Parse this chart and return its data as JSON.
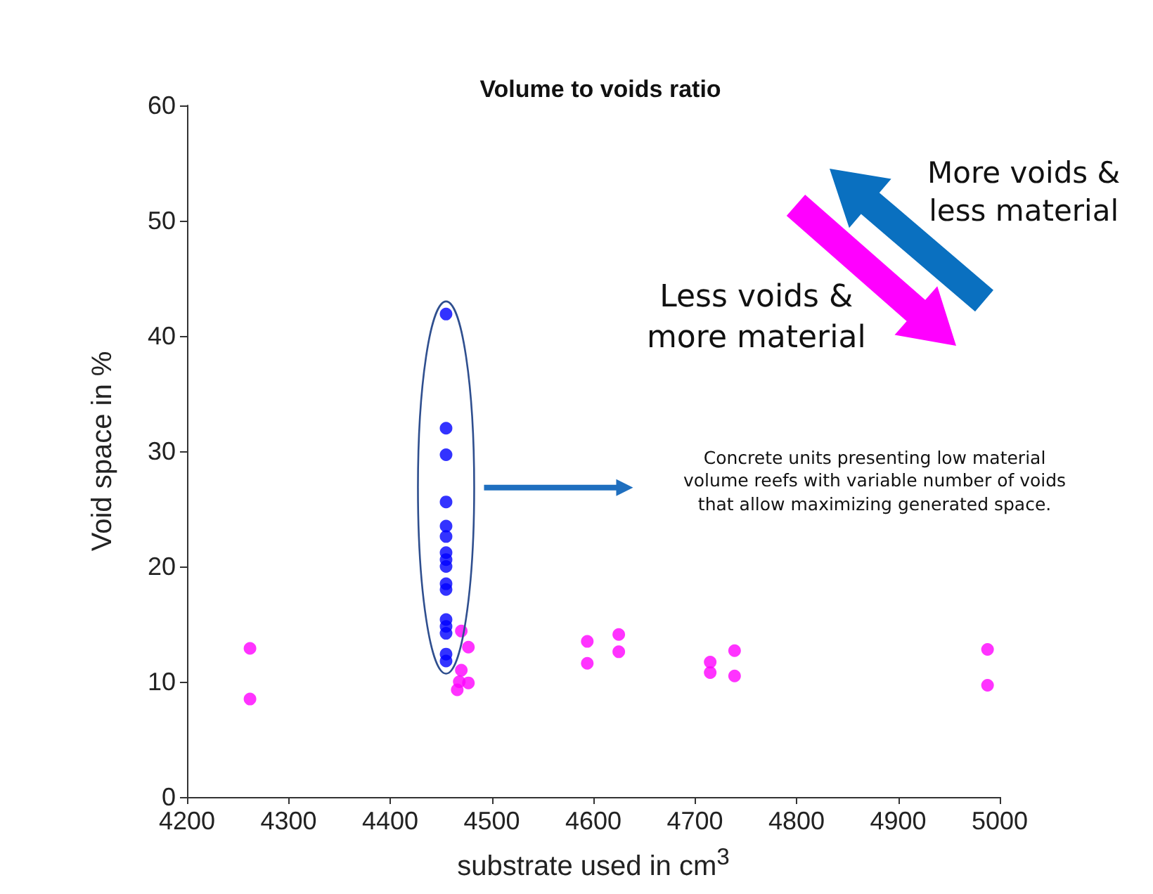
{
  "chart_data": {
    "type": "scatter",
    "title": "Volume to voids ratio",
    "xlabel": "substrate used in cm$^{3}$",
    "ylabel": "Void space in %",
    "xlim": [
      4200,
      5000
    ],
    "xticks": [
      4200,
      4300,
      4400,
      4500,
      4600,
      4700,
      4800,
      4900,
      5000
    ],
    "ylim": [
      0,
      60
    ],
    "yticks": [
      0,
      10,
      20,
      30,
      40,
      50,
      60
    ],
    "grid": false,
    "marker": "circle",
    "annotations": [
      "More voids &\nless material",
      "Less voids &\nmore material",
      "Concrete units presenting low material\nvolume reefs with variable number of voids\nthat allow maximizing generated space."
    ],
    "series": [
      {
        "color": "#0000ff",
        "x": [
          4455,
          4455,
          4455,
          4455,
          4455,
          4455,
          4455,
          4455,
          4455,
          4455,
          4455,
          4455,
          4455,
          4455,
          4455,
          4455
        ],
        "values": [
          41.9,
          32.0,
          29.7,
          25.6,
          23.5,
          22.6,
          21.2,
          20.6,
          20.0,
          18.5,
          18.0,
          15.4,
          14.8,
          14.2,
          12.4,
          11.8
        ]
      },
      {
        "color": "#ff00ff",
        "x": [
          4262,
          4262,
          4470,
          4477,
          4470,
          4466,
          4477,
          4468,
          4594,
          4594,
          4625,
          4625,
          4715,
          4715,
          4739,
          4739,
          4988,
          4988
        ],
        "values": [
          12.9,
          8.5,
          14.4,
          13.0,
          11.0,
          9.3,
          9.9,
          10.0,
          13.5,
          11.6,
          14.1,
          12.6,
          11.7,
          10.8,
          12.7,
          10.5,
          12.8,
          9.7
        ]
      }
    ]
  }
}
